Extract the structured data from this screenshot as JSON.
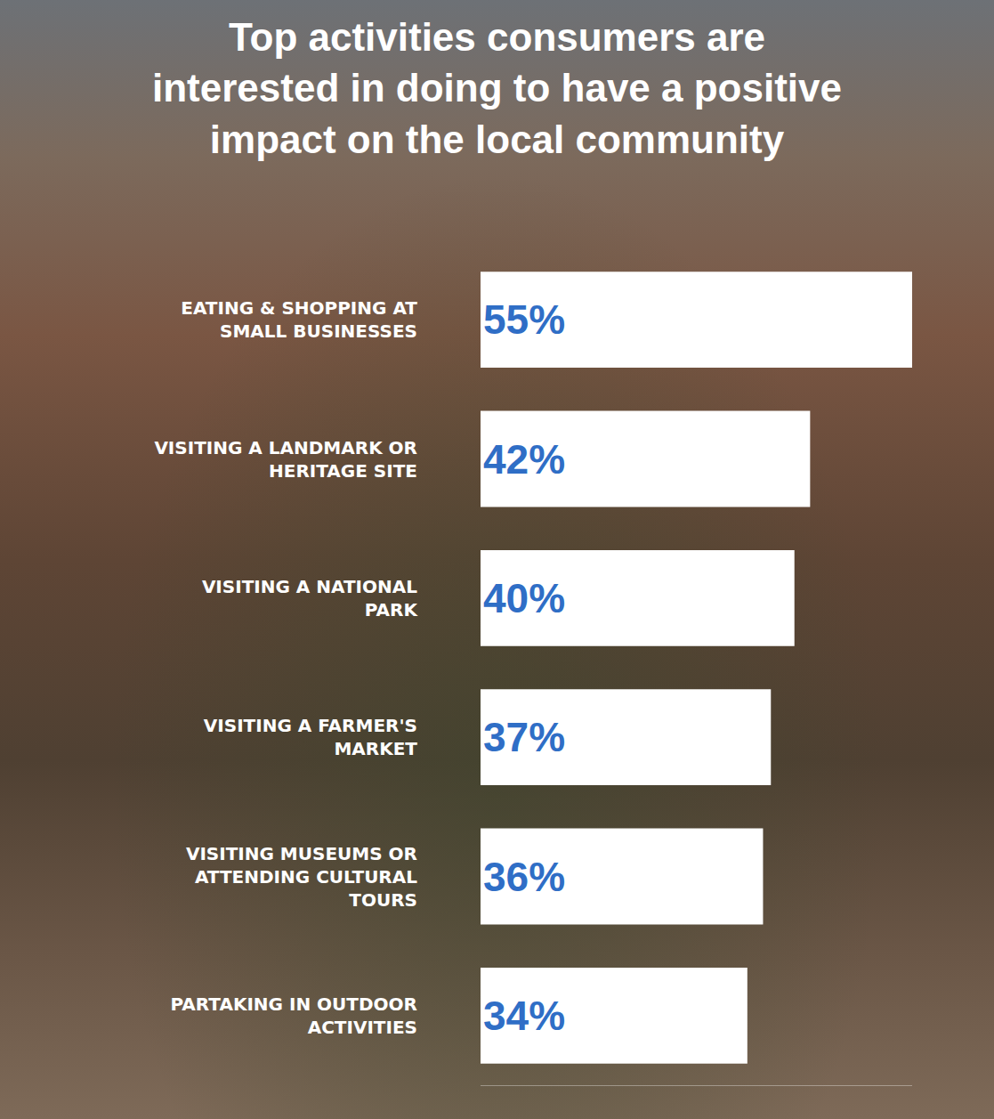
{
  "chart_data": {
    "type": "bar",
    "orientation": "horizontal",
    "title": "Top activities consumers are interested in doing to have a positive impact on the local community",
    "categories": [
      "EATING & SHOPPING AT SMALL BUSINESSES",
      "VISITING A LANDMARK OR HERITAGE SITE",
      "VISITING A NATIONAL PARK",
      "VISITING A FARMER'S MARKET",
      "VISITING MUSEUMS OR ATTENDING CULTURAL TOURS",
      "PARTAKING IN OUTDOOR ACTIVITIES"
    ],
    "values": [
      55,
      42,
      40,
      37,
      36,
      34
    ],
    "value_labels": [
      "55%",
      "42%",
      "40%",
      "37%",
      "36%",
      "34%"
    ],
    "data_labels": true,
    "color": "#ffffff",
    "xlim": [
      0,
      55
    ],
    "xticks": [],
    "grid": false,
    "tick_labels": "y"
  }
}
